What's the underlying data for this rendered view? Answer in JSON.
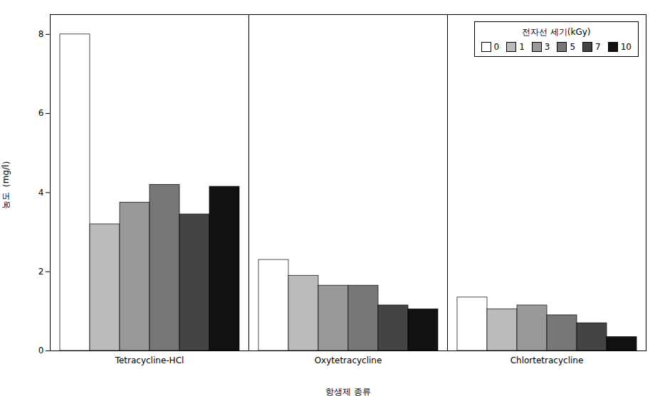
{
  "chart_data": {
    "type": "bar",
    "categories": [
      "Tetracycline-HCl",
      "Oxytetracycline",
      "Chlortetracycline"
    ],
    "series": [
      {
        "name": "0",
        "color": "#FFFFFF",
        "values": [
          8.0,
          2.3,
          1.35
        ]
      },
      {
        "name": "1",
        "color": "#BBBBBB",
        "values": [
          3.2,
          1.9,
          1.05
        ]
      },
      {
        "name": "3",
        "color": "#999999",
        "values": [
          3.75,
          1.65,
          1.15
        ]
      },
      {
        "name": "5",
        "color": "#777777",
        "values": [
          4.2,
          1.65,
          0.9
        ]
      },
      {
        "name": "7",
        "color": "#444444",
        "values": [
          3.45,
          1.15,
          0.7
        ]
      },
      {
        "name": "10",
        "color": "#111111",
        "values": [
          4.15,
          1.05,
          0.35
        ]
      }
    ],
    "xlabel": "항생제 종류",
    "ylabel": "농도（mg/l）",
    "legend_title": "전자선 세기(kGy)",
    "ylim": [
      0,
      8.5
    ],
    "yticks": [
      0,
      2,
      4,
      6,
      8
    ],
    "grid": false,
    "legend": "upper right"
  }
}
